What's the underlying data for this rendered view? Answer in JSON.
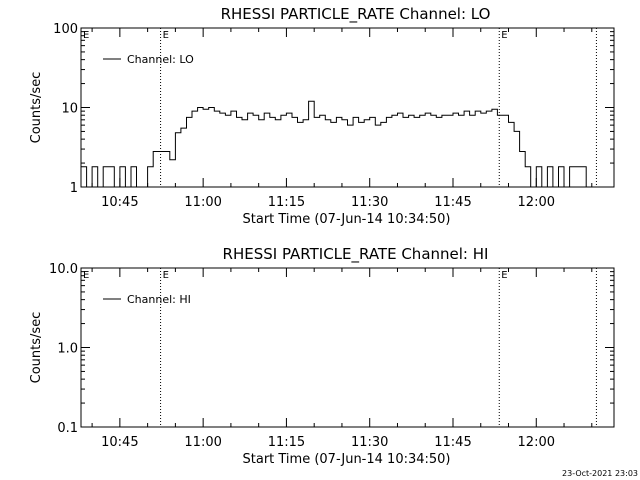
{
  "chart_data": [
    {
      "type": "line",
      "title": "RHESSI PARTICLE_RATE Channel: LO",
      "xlabel": "Start Time (07-Jun-14 10:34:50)",
      "ylabel": "Counts/sec",
      "yscale": "log",
      "xlim": [
        "10:38:00",
        "12:14:00"
      ],
      "ylim": [
        1,
        100
      ],
      "xticks": [
        "10:45",
        "11:00",
        "11:15",
        "11:30",
        "11:45",
        "12:00"
      ],
      "yticks": [
        "1",
        "10",
        "100"
      ],
      "legend": {
        "placement": "top-left",
        "label": "Channel: LO"
      },
      "markers": [
        {
          "time": "10:52:20",
          "label": "E"
        },
        {
          "time": "11:53:20",
          "label": "E"
        },
        {
          "time": "12:10:50",
          "label": ""
        }
      ],
      "corner_label": "E",
      "series": [
        {
          "x": [
            "10:38",
            "10:39",
            "10:40",
            "10:41",
            "10:42",
            "10:43",
            "10:44",
            "10:45",
            "10:46",
            "10:47",
            "10:48",
            "10:49",
            "10:50",
            "10:51",
            "10:52",
            "10:53",
            "10:54",
            "10:55",
            "10:56",
            "10:57",
            "10:58",
            "10:59",
            "11:00",
            "11:01",
            "11:02",
            "11:03",
            "11:04",
            "11:05",
            "11:06",
            "11:07",
            "11:08",
            "11:09",
            "11:10",
            "11:11",
            "11:12",
            "11:13",
            "11:14",
            "11:15",
            "11:16",
            "11:17",
            "11:18",
            "11:19",
            "11:20",
            "11:21",
            "11:22",
            "11:23",
            "11:24",
            "11:25",
            "11:26",
            "11:27",
            "11:28",
            "11:29",
            "11:30",
            "11:31",
            "11:32",
            "11:33",
            "11:34",
            "11:35",
            "11:36",
            "11:37",
            "11:38",
            "11:39",
            "11:40",
            "11:41",
            "11:42",
            "11:43",
            "11:44",
            "11:45",
            "11:46",
            "11:47",
            "11:48",
            "11:49",
            "11:50",
            "11:51",
            "11:52",
            "11:53",
            "11:54",
            "11:55",
            "11:56",
            "11:57",
            "11:58",
            "11:59",
            "12:00",
            "12:01",
            "12:02",
            "12:03",
            "12:04",
            "12:05",
            "12:06",
            "12:07",
            "12:08",
            "12:09",
            "12:10"
          ],
          "y": [
            1.8,
            1,
            1.8,
            1,
            1.8,
            1.8,
            1,
            1.8,
            1,
            1.8,
            1,
            1,
            1.8,
            2.8,
            2.8,
            2.8,
            2.2,
            4.8,
            5.5,
            7.5,
            9,
            10,
            9.5,
            10,
            9,
            8.5,
            8,
            9,
            7.5,
            7,
            8.5,
            8,
            7,
            8.5,
            7.5,
            7,
            8,
            8.5,
            7.5,
            6.5,
            7,
            12,
            7.5,
            8,
            7,
            6.5,
            7.5,
            7,
            6,
            7.5,
            6.5,
            7,
            7.5,
            6,
            6.5,
            7.5,
            8,
            8.5,
            7.5,
            8,
            7.5,
            8,
            8.5,
            8,
            7.5,
            8,
            8,
            8.5,
            8,
            9,
            8,
            9,
            8.5,
            9,
            9.5,
            8,
            8,
            6.5,
            5,
            2.8,
            1.8,
            1,
            1.8,
            1,
            1.8,
            1,
            1.8,
            1,
            1.8,
            1.8,
            1.8,
            1,
            1
          ]
        }
      ]
    },
    {
      "type": "line",
      "title": "RHESSI PARTICLE_RATE Channel: HI",
      "xlabel": "Start Time (07-Jun-14 10:34:50)",
      "ylabel": "Counts/sec",
      "yscale": "log",
      "xlim": [
        "10:38:00",
        "12:14:00"
      ],
      "ylim": [
        0.1,
        10
      ],
      "xticks": [
        "10:45",
        "11:00",
        "11:15",
        "11:30",
        "11:45",
        "12:00"
      ],
      "yticks": [
        "0.1",
        "1.0",
        "10.0"
      ],
      "legend": {
        "placement": "top-left",
        "label": "Channel: HI"
      },
      "markers": [
        {
          "time": "10:52:20",
          "label": "E"
        },
        {
          "time": "11:53:20",
          "label": "E"
        },
        {
          "time": "12:10:50",
          "label": ""
        }
      ],
      "corner_label": "E",
      "series": [
        {
          "x": [],
          "y": []
        }
      ]
    }
  ],
  "footer": {
    "timestamp": "23-Oct-2021 23:03"
  }
}
